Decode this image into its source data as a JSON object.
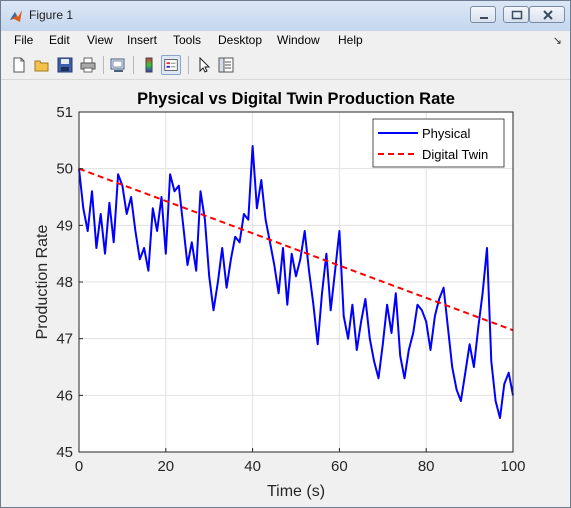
{
  "window": {
    "title": "Figure 1",
    "colors": {
      "titlebar": "#c5d7ee",
      "frame": "#f0f0f0"
    }
  },
  "menu": {
    "items": [
      "File",
      "Edit",
      "View",
      "Insert",
      "Tools",
      "Desktop",
      "Window",
      "Help"
    ],
    "arrow": "↘"
  },
  "toolbar": {
    "icons": [
      "new-figure-icon",
      "open-file-icon",
      "save-icon",
      "print-icon",
      "link-plot-icon",
      "colorbar-icon",
      "legend-icon",
      "pointer-icon",
      "property-inspector-icon"
    ]
  },
  "chart_data": {
    "type": "line",
    "title": "Physical vs Digital Twin Production Rate",
    "xlabel": "Time (s)",
    "ylabel": "Production Rate",
    "xlim": [
      0,
      100
    ],
    "ylim": [
      45,
      51
    ],
    "xticks": [
      0,
      20,
      40,
      60,
      80,
      100
    ],
    "yticks": [
      45,
      46,
      47,
      48,
      49,
      50,
      51
    ],
    "grid": true,
    "legend_position": "top-right",
    "series": [
      {
        "name": "Physical",
        "color": "#0000ff",
        "style": "solid",
        "x": [
          0,
          1,
          2,
          3,
          4,
          5,
          6,
          7,
          8,
          9,
          10,
          11,
          12,
          13,
          14,
          15,
          16,
          17,
          18,
          19,
          20,
          21,
          22,
          23,
          24,
          25,
          26,
          27,
          28,
          29,
          30,
          31,
          32,
          33,
          34,
          35,
          36,
          37,
          38,
          39,
          40,
          41,
          42,
          43,
          44,
          45,
          46,
          47,
          48,
          49,
          50,
          51,
          52,
          53,
          54,
          55,
          56,
          57,
          58,
          59,
          60,
          61,
          62,
          63,
          64,
          65,
          66,
          67,
          68,
          69,
          70,
          71,
          72,
          73,
          74,
          75,
          76,
          77,
          78,
          79,
          80,
          81,
          82,
          83,
          84,
          85,
          86,
          87,
          88,
          89,
          90,
          91,
          92,
          93,
          94,
          95,
          96,
          97,
          98,
          99,
          100
        ],
        "y": [
          50.0,
          49.3,
          48.9,
          49.6,
          48.6,
          49.2,
          48.5,
          49.4,
          48.7,
          49.9,
          49.7,
          49.2,
          49.5,
          48.9,
          48.4,
          48.6,
          48.2,
          49.3,
          48.9,
          49.5,
          48.5,
          49.9,
          49.6,
          49.7,
          49.0,
          48.3,
          48.7,
          48.2,
          49.6,
          49.1,
          48.1,
          47.5,
          48.0,
          48.6,
          47.9,
          48.4,
          48.8,
          48.7,
          49.2,
          49.1,
          50.4,
          49.3,
          49.8,
          49.1,
          48.7,
          48.3,
          47.8,
          48.6,
          47.6,
          48.5,
          48.1,
          48.4,
          48.9,
          48.2,
          47.6,
          46.9,
          47.8,
          48.5,
          47.5,
          48.2,
          48.9,
          47.4,
          47.0,
          47.6,
          46.8,
          47.3,
          47.7,
          47.0,
          46.6,
          46.3,
          46.9,
          47.6,
          47.1,
          47.8,
          46.7,
          46.3,
          46.8,
          47.1,
          47.6,
          47.5,
          47.3,
          46.8,
          47.4,
          47.7,
          47.9,
          47.2,
          46.5,
          46.1,
          45.9,
          46.4,
          46.9,
          46.5,
          47.2,
          47.8,
          48.6,
          46.6,
          45.9,
          45.6,
          46.2,
          46.4,
          46.0
        ]
      },
      {
        "name": "Digital Twin",
        "color": "#ff0000",
        "style": "dashed",
        "x": [
          0,
          100
        ],
        "y": [
          50.0,
          47.15
        ]
      }
    ]
  }
}
